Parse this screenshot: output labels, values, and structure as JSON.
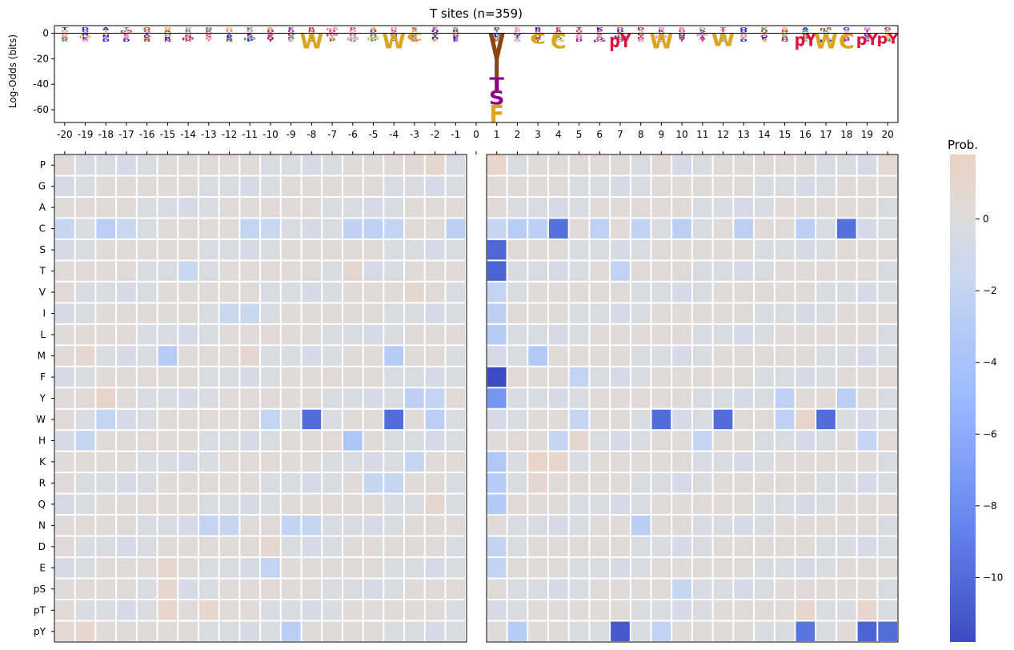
{
  "chart_data": [
    {
      "type": "sequence_logo",
      "title": "T sites (n=359)",
      "ylabel": "Log-Odds (bits)",
      "xlabel": "",
      "ylim": [
        -70,
        6
      ],
      "yticks": [
        0,
        -20,
        -40,
        -60
      ],
      "positions": [
        -20,
        -19,
        -18,
        -17,
        -16,
        -15,
        -14,
        -13,
        -12,
        -11,
        -10,
        -9,
        -8,
        -7,
        -6,
        -5,
        -4,
        -3,
        -2,
        -1,
        0,
        1,
        2,
        3,
        4,
        5,
        6,
        7,
        8,
        9,
        10,
        11,
        12,
        13,
        14,
        15,
        16,
        17,
        18,
        19,
        20
      ],
      "residue_colors": {
        "W": "#daa520",
        "C": "#daa520",
        "F": "#daa520",
        "pY": "#dc143c",
        "pS": "#dc143c",
        "pT": "#dc143c",
        "S": "#8b008b",
        "T": "#8b008b",
        "Y": "#8b4513",
        "K": "#0000cd",
        "R": "#0000cd",
        "H": "#0000cd"
      },
      "depleted_letters": [
        {
          "position": -8,
          "residue": "W",
          "value": -12
        },
        {
          "position": -4,
          "residue": "W",
          "value": -12
        },
        {
          "position": -3,
          "residue": "C",
          "value": -6
        },
        {
          "position": 1,
          "residue": "F",
          "value": -70
        },
        {
          "position": 1,
          "residue": "S",
          "value": -56
        },
        {
          "position": 1,
          "residue": "T",
          "value": -45
        },
        {
          "position": 1,
          "residue": "Y",
          "value": -35
        },
        {
          "position": 3,
          "residue": "C",
          "value": -8
        },
        {
          "position": 4,
          "residue": "C",
          "value": -12
        },
        {
          "position": 7,
          "residue": "pY",
          "value": -11
        },
        {
          "position": 9,
          "residue": "W",
          "value": -12
        },
        {
          "position": 12,
          "residue": "W",
          "value": -10
        },
        {
          "position": 16,
          "residue": "pY",
          "value": -10
        },
        {
          "position": 17,
          "residue": "W",
          "value": -12
        },
        {
          "position": 18,
          "residue": "C",
          "value": -12
        },
        {
          "position": 19,
          "residue": "pY",
          "value": -9
        },
        {
          "position": 20,
          "residue": "pY",
          "value": -8
        }
      ]
    },
    {
      "type": "heatmap",
      "title": "",
      "x_categories": [
        -20,
        -19,
        -18,
        -17,
        -16,
        -15,
        -14,
        -13,
        -12,
        -11,
        -10,
        -9,
        -8,
        -7,
        -6,
        -5,
        -4,
        -3,
        -2,
        -1,
        0,
        1,
        2,
        3,
        4,
        5,
        6,
        7,
        8,
        9,
        10,
        11,
        12,
        13,
        14,
        15,
        16,
        17,
        18,
        19,
        20
      ],
      "y_categories": [
        "P",
        "G",
        "A",
        "C",
        "S",
        "T",
        "V",
        "I",
        "L",
        "M",
        "F",
        "Y",
        "W",
        "H",
        "K",
        "R",
        "Q",
        "N",
        "D",
        "E",
        "pS",
        "pT",
        "pY"
      ],
      "colorbar": {
        "title": "Prob.",
        "colormap": "coolwarm",
        "range": [
          -11.8,
          1.8
        ],
        "ticks": [
          0,
          -2,
          -4,
          -6,
          -8,
          -10
        ]
      },
      "empty_column": 0,
      "default_value": -0.3,
      "default_pattern": [
        0.35,
        -0.3,
        0.2,
        -0.6,
        0.45,
        -0.2,
        0.1,
        -0.45,
        0.3
      ],
      "cells": [
        {
          "row": "P",
          "col": 1,
          "value": 1.2
        },
        {
          "row": "P",
          "col": -2,
          "value": 0.8
        },
        {
          "row": "P",
          "col": -3,
          "value": 0.6
        },
        {
          "row": "P",
          "col": 9,
          "value": 0.6
        },
        {
          "row": "P",
          "col": 20,
          "value": 0.7
        },
        {
          "row": "C",
          "col": -20,
          "value": -1.8
        },
        {
          "row": "C",
          "col": -18,
          "value": -2.6
        },
        {
          "row": "C",
          "col": -17,
          "value": -1.6
        },
        {
          "row": "C",
          "col": -11,
          "value": -2.0
        },
        {
          "row": "C",
          "col": -10,
          "value": -1.7
        },
        {
          "row": "C",
          "col": -6,
          "value": -2.2
        },
        {
          "row": "C",
          "col": -5,
          "value": -2.4
        },
        {
          "row": "C",
          "col": -4,
          "value": -2.0
        },
        {
          "row": "C",
          "col": -1,
          "value": -2.5
        },
        {
          "row": "C",
          "col": 1,
          "value": -1.8
        },
        {
          "row": "C",
          "col": 2,
          "value": -2.8
        },
        {
          "row": "C",
          "col": 3,
          "value": -2.5
        },
        {
          "row": "C",
          "col": 4,
          "value": -9.8
        },
        {
          "row": "C",
          "col": 6,
          "value": -2.4
        },
        {
          "row": "C",
          "col": 8,
          "value": -2.2
        },
        {
          "row": "C",
          "col": 10,
          "value": -2.6
        },
        {
          "row": "C",
          "col": 13,
          "value": -2.5
        },
        {
          "row": "C",
          "col": 16,
          "value": -2.5
        },
        {
          "row": "C",
          "col": 18,
          "value": -9.8
        },
        {
          "row": "S",
          "col": 1,
          "value": -10.2
        },
        {
          "row": "T",
          "col": 1,
          "value": -10.5
        },
        {
          "row": "T",
          "col": -14,
          "value": -1.6
        },
        {
          "row": "T",
          "col": -6,
          "value": 0.8
        },
        {
          "row": "T",
          "col": 7,
          "value": -2.2
        },
        {
          "row": "V",
          "col": 1,
          "value": -2.0
        },
        {
          "row": "V",
          "col": -3,
          "value": 0.8
        },
        {
          "row": "I",
          "col": 1,
          "value": -2.5
        },
        {
          "row": "I",
          "col": -12,
          "value": -1.6
        },
        {
          "row": "I",
          "col": -11,
          "value": -1.6
        },
        {
          "row": "L",
          "col": 1,
          "value": -3.0
        },
        {
          "row": "M",
          "col": -15,
          "value": -3.0
        },
        {
          "row": "M",
          "col": -4,
          "value": -3.0
        },
        {
          "row": "M",
          "col": 3,
          "value": -3.2
        },
        {
          "row": "M",
          "col": -19,
          "value": 0.9
        },
        {
          "row": "M",
          "col": -11,
          "value": 0.9
        },
        {
          "row": "F",
          "col": 1,
          "value": -11.8
        },
        {
          "row": "F",
          "col": 5,
          "value": -2.0
        },
        {
          "row": "Y",
          "col": 1,
          "value": -7.5
        },
        {
          "row": "Y",
          "col": -18,
          "value": 1.1
        },
        {
          "row": "Y",
          "col": -3,
          "value": -2.5
        },
        {
          "row": "Y",
          "col": -2,
          "value": -2.0
        },
        {
          "row": "Y",
          "col": 15,
          "value": -2.4
        },
        {
          "row": "Y",
          "col": 18,
          "value": -2.6
        },
        {
          "row": "W",
          "col": -8,
          "value": -10.0
        },
        {
          "row": "W",
          "col": -4,
          "value": -10.0
        },
        {
          "row": "W",
          "col": -2,
          "value": -2.6
        },
        {
          "row": "W",
          "col": -18,
          "value": -2.0
        },
        {
          "row": "W",
          "col": -10,
          "value": -2.0
        },
        {
          "row": "W",
          "col": 5,
          "value": -1.8
        },
        {
          "row": "W",
          "col": 9,
          "value": -10.0
        },
        {
          "row": "W",
          "col": 12,
          "value": -10.0
        },
        {
          "row": "W",
          "col": 15,
          "value": -2.4
        },
        {
          "row": "W",
          "col": 16,
          "value": 1.1
        },
        {
          "row": "W",
          "col": 17,
          "value": -10.0
        },
        {
          "row": "H",
          "col": -6,
          "value": -3.6
        },
        {
          "row": "H",
          "col": -19,
          "value": -1.8
        },
        {
          "row": "H",
          "col": 4,
          "value": -1.8
        },
        {
          "row": "H",
          "col": 11,
          "value": -1.8
        },
        {
          "row": "H",
          "col": 19,
          "value": -1.8
        },
        {
          "row": "H",
          "col": 5,
          "value": 0.8
        },
        {
          "row": "K",
          "col": 1,
          "value": -3.4
        },
        {
          "row": "K",
          "col": 3,
          "value": 1.3
        },
        {
          "row": "K",
          "col": 4,
          "value": 1.2
        },
        {
          "row": "K",
          "col": -3,
          "value": -1.8
        },
        {
          "row": "R",
          "col": 1,
          "value": -3.0
        },
        {
          "row": "R",
          "col": 3,
          "value": 0.9
        },
        {
          "row": "R",
          "col": -5,
          "value": -1.8
        },
        {
          "row": "R",
          "col": -4,
          "value": -1.8
        },
        {
          "row": "Q",
          "col": 1,
          "value": -3.2
        },
        {
          "row": "Q",
          "col": -2,
          "value": 0.9
        },
        {
          "row": "N",
          "col": -13,
          "value": -2.0
        },
        {
          "row": "N",
          "col": -12,
          "value": -1.8
        },
        {
          "row": "N",
          "col": -9,
          "value": -2.0
        },
        {
          "row": "N",
          "col": -8,
          "value": -1.8
        },
        {
          "row": "N",
          "col": 8,
          "value": -2.6
        },
        {
          "row": "D",
          "col": 1,
          "value": -2.0
        },
        {
          "row": "D",
          "col": -10,
          "value": 0.9
        },
        {
          "row": "E",
          "col": 1,
          "value": -2.0
        },
        {
          "row": "E",
          "col": -10,
          "value": -2.0
        },
        {
          "row": "E",
          "col": -15,
          "value": 0.9
        },
        {
          "row": "pS",
          "col": -15,
          "value": 0.9
        },
        {
          "row": "pS",
          "col": 10,
          "value": -1.8
        },
        {
          "row": "pT",
          "col": -15,
          "value": 1.2
        },
        {
          "row": "pT",
          "col": -13,
          "value": 1.0
        },
        {
          "row": "pT",
          "col": 16,
          "value": 1.0
        },
        {
          "row": "pT",
          "col": 19,
          "value": 1.0
        },
        {
          "row": "pY",
          "col": 7,
          "value": -11.0
        },
        {
          "row": "pY",
          "col": 16,
          "value": -9.5
        },
        {
          "row": "pY",
          "col": 19,
          "value": -10.5
        },
        {
          "row": "pY",
          "col": 20,
          "value": -10.0
        },
        {
          "row": "pY",
          "col": 2,
          "value": -3.0
        },
        {
          "row": "pY",
          "col": -9,
          "value": -2.6
        },
        {
          "row": "pY",
          "col": 9,
          "value": -2.2
        },
        {
          "row": "pY",
          "col": -19,
          "value": 0.9
        },
        {
          "row": "pY",
          "col": -20,
          "value": 0.7
        }
      ]
    }
  ]
}
